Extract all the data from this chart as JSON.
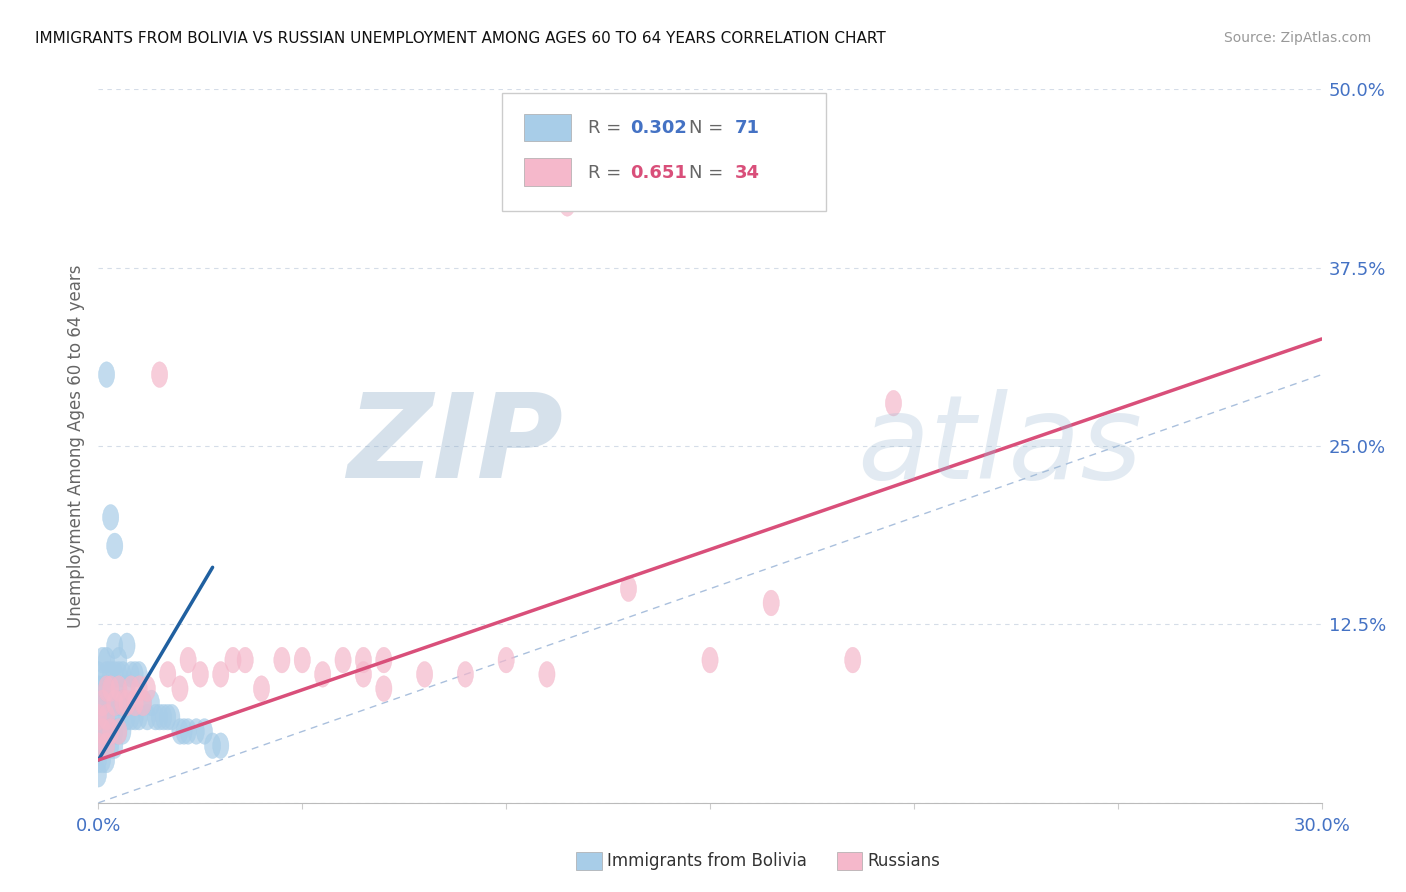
{
  "title": "IMMIGRANTS FROM BOLIVIA VS RUSSIAN UNEMPLOYMENT AMONG AGES 60 TO 64 YEARS CORRELATION CHART",
  "source": "Source: ZipAtlas.com",
  "ylabel": "Unemployment Among Ages 60 to 64 years",
  "xlim": [
    0.0,
    0.3
  ],
  "ylim": [
    0.0,
    0.5
  ],
  "xtick_labels": [
    "0.0%",
    "",
    "",
    "",
    "",
    "",
    "30.0%"
  ],
  "xtick_vals": [
    0.0,
    0.05,
    0.1,
    0.15,
    0.2,
    0.25,
    0.3
  ],
  "yticks_right": [
    0.0,
    0.125,
    0.25,
    0.375,
    0.5
  ],
  "yticklabels_right": [
    "",
    "12.5%",
    "25.0%",
    "37.5%",
    "50.0%"
  ],
  "legend_r1": "0.302",
  "legend_n1": "71",
  "legend_r2": "0.651",
  "legend_n2": "34",
  "blue_color": "#a8cde8",
  "pink_color": "#f5b8cb",
  "blue_line_color": "#2060a0",
  "pink_line_color": "#d94f7a",
  "diagonal_color": "#aac0dd",
  "watermark_zip": "ZIP",
  "watermark_atlas": "atlas",
  "bolivia_x": [
    0.0,
    0.0,
    0.0,
    0.0,
    0.0,
    0.0,
    0.0,
    0.0,
    0.001,
    0.001,
    0.001,
    0.001,
    0.001,
    0.001,
    0.001,
    0.002,
    0.002,
    0.002,
    0.002,
    0.002,
    0.002,
    0.002,
    0.002,
    0.003,
    0.003,
    0.003,
    0.003,
    0.003,
    0.003,
    0.004,
    0.004,
    0.004,
    0.004,
    0.004,
    0.005,
    0.005,
    0.005,
    0.005,
    0.005,
    0.005,
    0.006,
    0.006,
    0.006,
    0.007,
    0.007,
    0.007,
    0.008,
    0.008,
    0.009,
    0.009,
    0.01,
    0.01,
    0.011,
    0.012,
    0.013,
    0.014,
    0.015,
    0.016,
    0.017,
    0.018,
    0.02,
    0.021,
    0.022,
    0.024,
    0.026,
    0.028,
    0.03,
    0.002,
    0.003,
    0.004
  ],
  "bolivia_y": [
    0.02,
    0.03,
    0.04,
    0.05,
    0.06,
    0.07,
    0.08,
    0.09,
    0.03,
    0.04,
    0.05,
    0.06,
    0.07,
    0.08,
    0.1,
    0.03,
    0.04,
    0.05,
    0.06,
    0.07,
    0.08,
    0.09,
    0.1,
    0.04,
    0.05,
    0.06,
    0.07,
    0.08,
    0.09,
    0.04,
    0.05,
    0.07,
    0.09,
    0.11,
    0.05,
    0.06,
    0.07,
    0.08,
    0.09,
    0.1,
    0.05,
    0.07,
    0.09,
    0.06,
    0.08,
    0.11,
    0.06,
    0.09,
    0.06,
    0.09,
    0.06,
    0.09,
    0.07,
    0.06,
    0.07,
    0.06,
    0.06,
    0.06,
    0.06,
    0.06,
    0.05,
    0.05,
    0.05,
    0.05,
    0.05,
    0.04,
    0.04,
    0.3,
    0.2,
    0.18
  ],
  "bolivia_outlier_x": [
    0.003
  ],
  "bolivia_outlier_y": [
    0.3
  ],
  "russian_x": [
    0.0,
    0.0,
    0.001,
    0.001,
    0.002,
    0.002,
    0.002,
    0.003,
    0.003,
    0.004,
    0.005,
    0.005,
    0.006,
    0.007,
    0.008,
    0.009,
    0.01,
    0.011,
    0.012,
    0.015,
    0.017,
    0.02,
    0.022,
    0.025,
    0.03,
    0.033,
    0.036,
    0.04,
    0.045,
    0.05,
    0.055,
    0.06,
    0.065,
    0.07
  ],
  "russian_y": [
    0.04,
    0.06,
    0.05,
    0.07,
    0.04,
    0.06,
    0.08,
    0.05,
    0.08,
    0.07,
    0.05,
    0.08,
    0.07,
    0.07,
    0.08,
    0.07,
    0.08,
    0.07,
    0.08,
    0.3,
    0.09,
    0.08,
    0.1,
    0.09,
    0.09,
    0.1,
    0.1,
    0.08,
    0.1,
    0.1,
    0.09,
    0.1,
    0.1,
    0.1
  ],
  "russian_outlier1_x": [
    0.115
  ],
  "russian_outlier1_y": [
    0.42
  ],
  "russian_outlier2_x": [
    0.195
  ],
  "russian_outlier2_y": [
    0.28
  ],
  "russian_extra_x": [
    0.065,
    0.07,
    0.08,
    0.09,
    0.1,
    0.11,
    0.13,
    0.15,
    0.165,
    0.185
  ],
  "russian_extra_y": [
    0.09,
    0.08,
    0.09,
    0.09,
    0.1,
    0.09,
    0.15,
    0.1,
    0.14,
    0.1
  ],
  "bolivia_trendline_x": [
    0.0,
    0.028
  ],
  "bolivia_trendline_y": [
    0.03,
    0.165
  ],
  "russian_trendline_x": [
    0.0,
    0.3
  ],
  "russian_trendline_y": [
    0.03,
    0.325
  ],
  "title_fontsize": 11,
  "axis_tick_color": "#4472c4",
  "ylabel_color": "#666666",
  "source_color": "#999999"
}
